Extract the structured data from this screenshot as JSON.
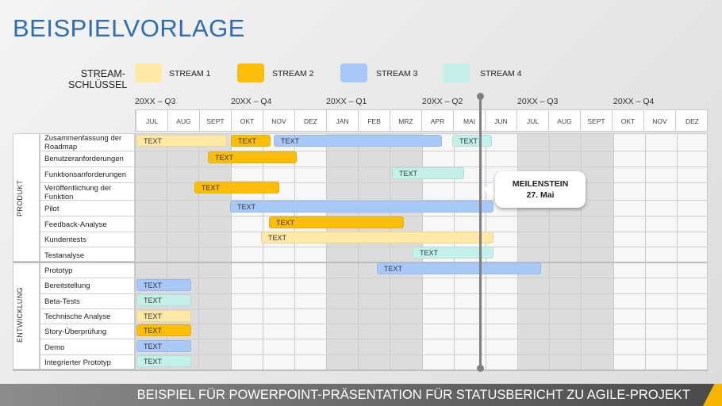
{
  "title": "BEISPIELVORLAGE",
  "legend": {
    "title_line1": "STREAM-",
    "title_line2": "SCHLÜSSEL",
    "streams": [
      {
        "label": "STREAM 1",
        "color": "#fde8a6"
      },
      {
        "label": "STREAM 2",
        "color": "#fbbd08"
      },
      {
        "label": "STREAM 3",
        "color": "#a8c8f8"
      },
      {
        "label": "STREAM 4",
        "color": "#c4f0ea"
      }
    ]
  },
  "quarters": [
    "20XX – Q3",
    "20XX – Q4",
    "20XX – Q1",
    "20XX – Q2",
    "20XX – Q3",
    "20XX – Q4"
  ],
  "months": [
    "JUL",
    "AUG",
    "SEPT",
    "OKT",
    "NOV",
    "DEZ",
    "JAN",
    "FEB",
    "MRZ",
    "APR",
    "MAI",
    "JUN",
    "JUL",
    "AUG",
    "SEPT",
    "OKT",
    "NOV",
    "DEZ"
  ],
  "sections": {
    "product": "PRODUKT",
    "development": "ENTWICKLUNG"
  },
  "tasks": {
    "product": [
      "Zusammenfassung der Roadmap",
      "Benutzeranforderungen",
      "Funktionsanforderungen",
      "Veröffentlichung der Funktion",
      "Pilot",
      "Feedback-Analyse",
      "Kundentests",
      "Testanalyse"
    ],
    "development": [
      "Prototyp",
      "Bereitstellung",
      "Beta-Tests",
      "Technische Analyse",
      "Story-Überprüfung",
      "Demo",
      "Integrierter Prototyp"
    ]
  },
  "bar_label": "TEXT",
  "milestone": {
    "title": "MEILENSTEIN",
    "date": "27. Mai"
  },
  "footer": "BEISPIEL FÜR POWERPOINT-PRÄSENTATION FÜR STATUSBERICHT ZU AGILE-PROJEKT"
}
